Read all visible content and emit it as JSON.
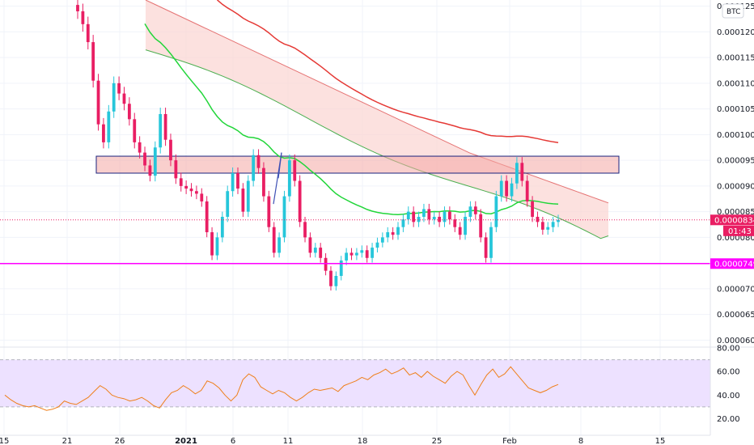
{
  "currency_label": "BTC",
  "colors": {
    "up": "#26c6da",
    "down": "#e91e63",
    "ema_long": "#e53935",
    "ema_mid": "#22d63a",
    "cloud_fill": "#fbd7d4",
    "cloud_line": "#e57373",
    "cloud_lower_line": "#4caf50",
    "zone_fill": "#f4a7a4",
    "zone_border": "#1a237e",
    "support": "#ff00ff",
    "price_line": "#e91e63",
    "rsi": "#ef7f1a",
    "rsi_band": "#ede1ff",
    "grid": "#f0f3fa"
  },
  "chart_data": [
    {
      "type": "candlestick",
      "title": "",
      "x_tick_labels": [
        "15",
        "21",
        "26",
        "2021",
        "6",
        "11",
        "18",
        "25",
        "Feb",
        "8",
        "15"
      ],
      "y_tick_labels": [
        "0.0001250",
        "0.0001200",
        "0.0001150",
        "0.0001100",
        "0.0001050",
        "0.0001000",
        "0.0000950",
        "0.0000900",
        "0.0000850",
        "0.0000800",
        "0.0000750",
        "0.0000700",
        "0.0000650",
        "0.0000600"
      ],
      "ylim": [
        5.88e-05,
        0.0001262
      ],
      "grid": true,
      "last_price": "0.0000834",
      "countdown": "01:43",
      "support_level": "0.0000749",
      "series": [
        {
          "name": "close",
          "values": [
            0.000124,
            0.0001215,
            0.000118,
            0.0001105,
            0.000102,
            9.85e-05,
            0.0001045,
            0.00011,
            0.000108,
            0.000106,
            0.000103,
            9.85e-05,
            9.65e-05,
            9.4e-05,
            9.2e-05,
            9.75e-05,
            0.000104,
            9.9e-05,
            9.5e-05,
            9.15e-05,
            9e-05,
            8.95e-05,
            8.9e-05,
            8.85e-05,
            8.7e-05,
            8.1e-05,
            7.65e-05,
            8e-05,
            8.4e-05,
            8.9e-05,
            9.25e-05,
            8.95e-05,
            8.5e-05,
            9.1e-05,
            9.6e-05,
            9.35e-05,
            8.8e-05,
            8.2e-05,
            7.7e-05,
            8e-05,
            8.8e-05,
            9.5e-05,
            9.1e-05,
            8.3e-05,
            8e-05,
            7.7e-05,
            7.8e-05,
            7.6e-05,
            7.35e-05,
            7.05e-05,
            7.25e-05,
            7.55e-05,
            7.7e-05,
            7.65e-05,
            7.7e-05,
            7.75e-05,
            7.6e-05,
            7.8e-05,
            7.9e-05,
            8e-05,
            8.1e-05,
            8.05e-05,
            8.2e-05,
            8.35e-05,
            8.5e-05,
            8.3e-05,
            8.4e-05,
            8.55e-05,
            8.35e-05,
            8.4e-05,
            8.3e-05,
            8.5e-05,
            8.35e-05,
            8.2e-05,
            8.05e-05,
            8.4e-05,
            8.6e-05,
            8.45e-05,
            8e-05,
            7.6e-05,
            8.2e-05,
            8.8e-05,
            9.1e-05,
            8.8e-05,
            9.05e-05,
            9.45e-05,
            9.1e-05,
            8.7e-05,
            8.4e-05,
            8.3e-05,
            8.15e-05,
            8.2e-05,
            8.3e-05,
            8.34e-05
          ]
        }
      ],
      "overlays": [
        {
          "label": "resistance-zone",
          "from": 9.25e-05,
          "to": 9.58e-05
        },
        {
          "label": "support-line",
          "value": 7.49e-05
        }
      ]
    },
    {
      "type": "line",
      "title": "",
      "y_tick_labels": [
        "80.00",
        "60.00",
        "40.00",
        "20.00"
      ],
      "ylim": [
        10,
        80
      ],
      "band": [
        30,
        70
      ],
      "series": [
        {
          "name": "",
          "values": [
            40,
            36,
            33,
            31,
            30,
            31,
            29,
            27,
            28,
            30,
            35,
            33,
            32,
            35,
            38,
            43,
            48,
            45,
            40,
            38,
            37,
            35,
            36,
            38,
            35,
            31,
            29,
            36,
            42,
            44,
            48,
            45,
            41,
            44,
            52,
            50,
            46,
            40,
            35,
            40,
            53,
            58,
            55,
            47,
            44,
            41,
            44,
            42,
            38,
            35,
            38,
            42,
            45,
            44,
            45,
            46,
            43,
            48,
            50,
            52,
            55,
            53,
            57,
            59,
            62,
            58,
            60,
            63,
            57,
            59,
            55,
            60,
            56,
            53,
            50,
            56,
            60,
            57,
            48,
            40,
            49,
            57,
            62,
            55,
            58,
            64,
            58,
            52,
            46,
            44,
            42,
            44,
            47,
            49
          ]
        }
      ]
    }
  ]
}
